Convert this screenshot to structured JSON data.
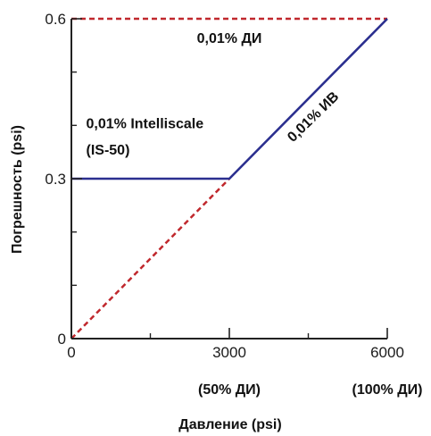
{
  "chart_data": {
    "type": "line",
    "title": "",
    "xlabel": "Давление (psi)",
    "ylabel": "Погрешность (psi)",
    "xlim": [
      0,
      6000
    ],
    "ylim": [
      0,
      0.6
    ],
    "x_ticks": [
      {
        "value": 0,
        "label": "0"
      },
      {
        "value": 3000,
        "label": "3000"
      },
      {
        "value": 6000,
        "label": "6000"
      }
    ],
    "x_minor_ticks": [
      1500,
      4500
    ],
    "x_tick_sublabels": [
      {
        "value": 3000,
        "label": "(50% ДИ)"
      },
      {
        "value": 6000,
        "label": "(100% ДИ)"
      }
    ],
    "y_ticks": [
      {
        "value": 0,
        "label": "0"
      },
      {
        "value": 0.3,
        "label": "0.3"
      },
      {
        "value": 0.6,
        "label": "0.6"
      }
    ],
    "y_minor_ticks": [
      0.1,
      0.2,
      0.4,
      0.5
    ],
    "grid": false,
    "series": [
      {
        "style": "dashed",
        "color": "#c0282d",
        "x": [
          0,
          6000
        ],
        "y": [
          0.6,
          0.6
        ]
      },
      {
        "style": "dashed",
        "color": "#c0282d",
        "x": [
          0,
          3000
        ],
        "y": [
          0,
          0.3
        ]
      },
      {
        "style": "solid",
        "color": "#2b2f8f",
        "x": [
          0,
          3000,
          6000
        ],
        "y": [
          0.3,
          0.3,
          0.6
        ]
      }
    ],
    "annotations": [
      {
        "text": "0,01% ДИ",
        "x": 3000,
        "y": 0.555,
        "rotate": 0,
        "anchor": "middle"
      },
      {
        "text": "0,01% Intelliscale",
        "x": 280,
        "y": 0.395,
        "rotate": 0,
        "anchor": "start"
      },
      {
        "text": "(IS-50)",
        "x": 280,
        "y": 0.345,
        "rotate": 0,
        "anchor": "start"
      },
      {
        "text": "0,01% ИВ",
        "x": 4650,
        "y": 0.41,
        "rotate": -44,
        "anchor": "middle"
      }
    ]
  }
}
